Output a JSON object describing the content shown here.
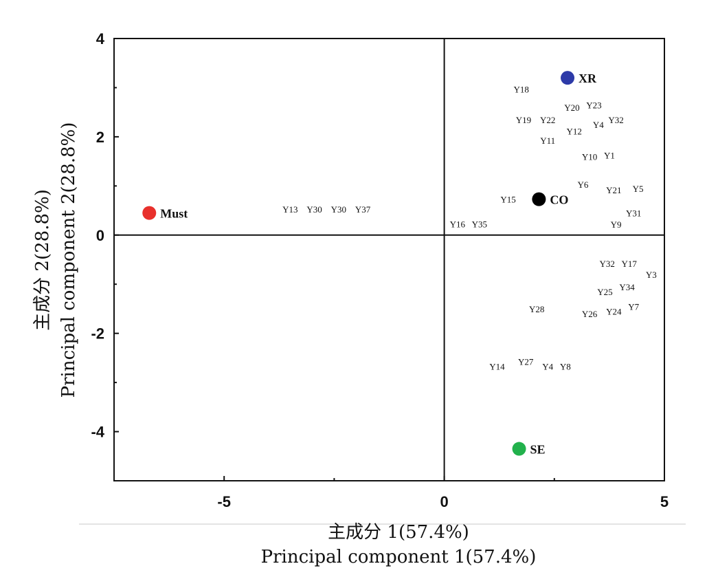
{
  "chart_data": {
    "type": "scatter",
    "xlabel_cn": "主成分 1(57.4%)",
    "xlabel_en": "Principal  component  1(57.4%)",
    "ylabel_cn": "主成分 2(28.8%)",
    "ylabel_en": "Principal  component  2(28.8%)",
    "xlim": [
      -7.5,
      5
    ],
    "ylim": [
      -5,
      4
    ],
    "xticks": [
      -5,
      0,
      5
    ],
    "yticks": [
      4,
      2,
      0,
      -2,
      -4
    ],
    "grid": false,
    "legend": "none",
    "samples": [
      {
        "label": "Must",
        "x": -6.7,
        "y": 0.45,
        "color": "#e8302c"
      },
      {
        "label": "XR",
        "x": 2.8,
        "y": 3.2,
        "color": "#2d3aa8"
      },
      {
        "label": "CO",
        "x": 2.15,
        "y": 0.73,
        "color": "#000000"
      },
      {
        "label": "SE",
        "x": 1.7,
        "y": -4.35,
        "color": "#22b14c"
      }
    ],
    "variables": [
      {
        "label": "Y18",
        "x": 1.75,
        "y": 2.97
      },
      {
        "label": "Y20",
        "x": 2.9,
        "y": 2.6
      },
      {
        "label": "Y23",
        "x": 3.4,
        "y": 2.65
      },
      {
        "label": "Y19",
        "x": 1.8,
        "y": 2.35
      },
      {
        "label": "Y22",
        "x": 2.35,
        "y": 2.35
      },
      {
        "label": "Y32",
        "x": 3.9,
        "y": 2.35
      },
      {
        "label": "Y4",
        "x": 3.5,
        "y": 2.25
      },
      {
        "label": "Y12",
        "x": 2.95,
        "y": 2.12
      },
      {
        "label": "Y11",
        "x": 2.35,
        "y": 1.93
      },
      {
        "label": "Y10",
        "x": 3.3,
        "y": 1.6
      },
      {
        "label": "Y1",
        "x": 3.75,
        "y": 1.63
      },
      {
        "label": "Y6",
        "x": 3.15,
        "y": 1.03
      },
      {
        "label": "Y21",
        "x": 3.85,
        "y": 0.92
      },
      {
        "label": "Y5",
        "x": 4.4,
        "y": 0.95
      },
      {
        "label": "Y15",
        "x": 1.45,
        "y": 0.73
      },
      {
        "label": "Y31",
        "x": 4.3,
        "y": 0.45
      },
      {
        "label": "Y9",
        "x": 3.9,
        "y": 0.22
      },
      {
        "label": "Y13",
        "x": -3.5,
        "y": 0.53
      },
      {
        "label": "Y30",
        "x": -2.95,
        "y": 0.53
      },
      {
        "label": "Y30",
        "x": -2.4,
        "y": 0.53
      },
      {
        "label": "Y37",
        "x": -1.85,
        "y": 0.53
      },
      {
        "label": "Y16",
        "x": 0.3,
        "y": 0.23
      },
      {
        "label": "Y35",
        "x": 0.8,
        "y": 0.23
      },
      {
        "label": "Y32",
        "x": 3.7,
        "y": -0.58
      },
      {
        "label": "Y17",
        "x": 4.2,
        "y": -0.58
      },
      {
        "label": "Y3",
        "x": 4.7,
        "y": -0.8
      },
      {
        "label": "Y34",
        "x": 4.15,
        "y": -1.05
      },
      {
        "label": "Y25",
        "x": 3.65,
        "y": -1.15
      },
      {
        "label": "Y28",
        "x": 2.1,
        "y": -1.5
      },
      {
        "label": "Y7",
        "x": 4.3,
        "y": -1.45
      },
      {
        "label": "Y26",
        "x": 3.3,
        "y": -1.6
      },
      {
        "label": "Y24",
        "x": 3.85,
        "y": -1.55
      },
      {
        "label": "Y14",
        "x": 1.2,
        "y": -2.67
      },
      {
        "label": "Y27",
        "x": 1.85,
        "y": -2.57
      },
      {
        "label": "Y4",
        "x": 2.35,
        "y": -2.67
      },
      {
        "label": "Y8",
        "x": 2.75,
        "y": -2.67
      }
    ]
  }
}
